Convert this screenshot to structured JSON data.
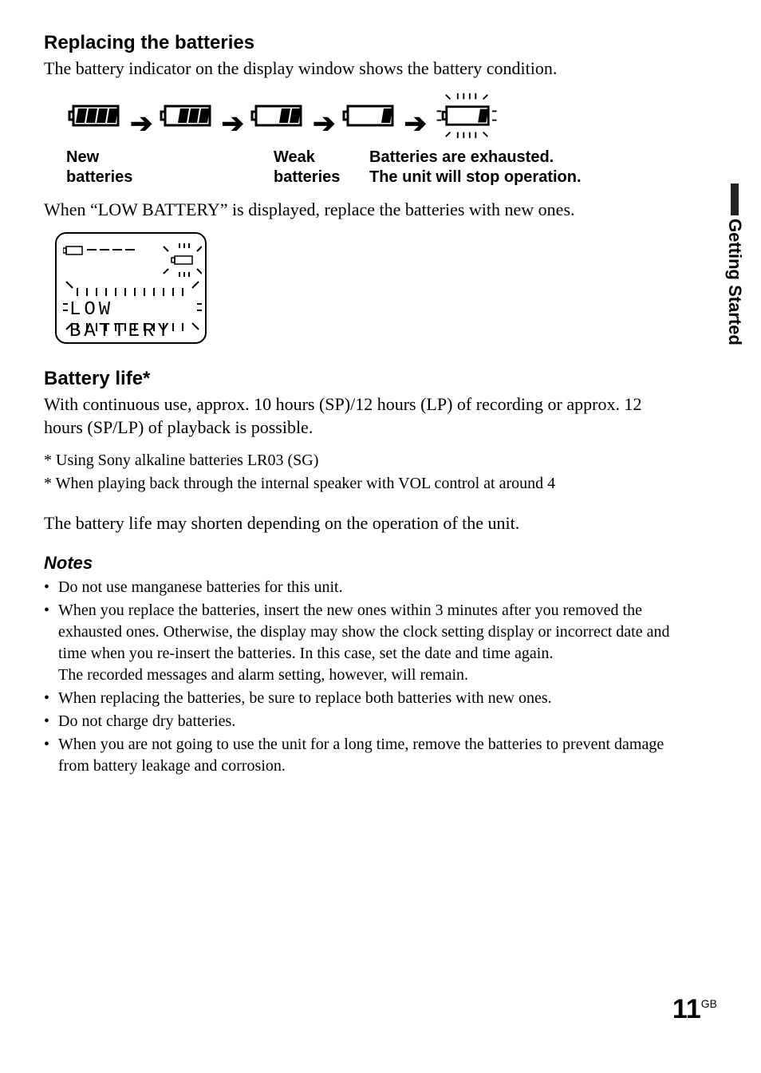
{
  "side_tab": "Getting Started",
  "section1": {
    "heading": "Replacing the batteries",
    "intro": "The battery indicator on the display window shows the battery condition.",
    "sequence": {
      "steps": [
        {
          "bars": 4,
          "flash": false
        },
        {
          "bars": 3,
          "flash": false
        },
        {
          "bars": 2,
          "flash": false
        },
        {
          "bars": 1,
          "flash": false
        },
        {
          "bars": 1,
          "flash": true
        }
      ],
      "labels": {
        "new": "New\nbatteries",
        "weak": "Weak\nbatteries",
        "exhausted": "Batteries are exhausted.\nThe unit will stop operation."
      }
    },
    "after": "When “LOW BATTERY” is displayed, replace the batteries with new ones.",
    "lcd_text": "LOW BATTERY"
  },
  "section2": {
    "heading": "Battery life*",
    "body": "With continuous use, approx. 10 hours (SP)/12 hours (LP) of recording or approx. 12 hours (SP/LP) of playback is possible.",
    "footnotes": [
      "* Using Sony alkaline batteries LR03 (SG)",
      "* When playing back through the internal speaker with VOL control at around 4"
    ],
    "tail": "The battery life may shorten depending on the operation of the unit."
  },
  "notes": {
    "heading": "Notes",
    "items": [
      "Do not use manganese batteries for this unit.",
      "When you replace the batteries, insert the new ones within 3 minutes after you removed the exhausted ones. Otherwise, the display may show the clock setting display or incorrect date and time when you re-insert the batteries. In this case, set the date and time again.\nThe recorded messages and alarm setting, however, will remain.",
      "When replacing the batteries, be sure to replace both batteries with new ones.",
      "Do not charge dry batteries.",
      "When you are not going to use the unit for a long time, remove the batteries to prevent damage from battery leakage and corrosion."
    ]
  },
  "page_number": {
    "num": "11",
    "suffix": "GB"
  },
  "style": {
    "icon_stroke": "#000000",
    "icon_stroke_w": 3,
    "bar_fill": "#000000",
    "flash_stroke": "#000000"
  }
}
